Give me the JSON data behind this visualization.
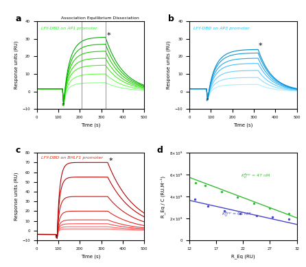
{
  "panel_a": {
    "label": "a",
    "title": "Association Equilibrium Dissociation",
    "subtitle": "LFY-DBD on AP1 promoter",
    "subtitle_color": "#22ee22",
    "xlim": [
      0,
      500
    ],
    "ylim": [
      -10,
      40
    ],
    "xlabel": "Time (s)",
    "ylabel": "Response units (RU)",
    "assoc_start": 120,
    "dissoc_start": 320,
    "vline1": 210,
    "vline2": 320,
    "num_curves": 7,
    "max_responses": [
      5,
      10,
      15,
      19,
      23,
      27,
      31
    ],
    "k_on": 0.03,
    "k_off": 0.012,
    "baseline": 1.5,
    "dip": -8.0,
    "star_x": 325,
    "star_y": 30,
    "bracket_x": 120,
    "bracket_y": -9
  },
  "panel_b": {
    "label": "b",
    "subtitle": "LFY-DBD on AP3 promoter",
    "subtitle_color": "#00ccff",
    "xlim": [
      0,
      500
    ],
    "ylim": [
      -10,
      40
    ],
    "xlabel": "Time (s)",
    "ylabel": "Response units (RU)",
    "assoc_start": 80,
    "dissoc_start": 320,
    "num_curves": 7,
    "max_responses": [
      4,
      8,
      12,
      16,
      19,
      22,
      24
    ],
    "k_on": 0.025,
    "k_off": 0.015,
    "baseline": 1.5,
    "dip": -5.0,
    "star_x": 320,
    "star_y": 24,
    "bracket_x": 80,
    "bracket_y": -6
  },
  "panel_c": {
    "label": "c",
    "subtitle": "LFY-DBD on BHLF1 promoter",
    "subtitle_color": "#ee2200",
    "xlim": [
      0,
      500
    ],
    "ylim": [
      -10,
      80
    ],
    "xlabel": "Time (s)",
    "ylabel": "Response units (RU)",
    "assoc_start": 90,
    "dissoc_start": 330,
    "num_curves": 9,
    "max_responses": [
      1,
      2,
      4,
      7,
      11,
      20,
      35,
      55,
      70
    ],
    "k_on": 0.08,
    "k_off": 0.008,
    "baseline": -4.0,
    "dip": -8.0,
    "star_x": 335,
    "star_y": 68,
    "bracket_x": 90,
    "bracket_y": -9
  },
  "panel_d": {
    "label": "d",
    "xlabel": "R_Eq (RU)",
    "ylabel": "R_Eq / C (RU.M⁻¹)",
    "xlim": [
      12,
      32
    ],
    "ylim": [
      0,
      800000000.0
    ],
    "xticks": [
      12,
      17,
      22,
      27,
      32
    ],
    "yticks": [
      0,
      200000000.0,
      400000000.0,
      600000000.0,
      800000000.0
    ],
    "green_points_x": [
      13.2,
      15.0,
      18.0,
      21.0,
      24.0,
      27.0,
      30.5
    ],
    "green_points_y": [
      525000000.0,
      500000000.0,
      445000000.0,
      395000000.0,
      335000000.0,
      295000000.0,
      245000000.0
    ],
    "green_line_x": [
      12,
      32
    ],
    "green_line_y": [
      575000000.0,
      205000000.0
    ],
    "green_color": "#33bb33",
    "blue_points_x": [
      13.0,
      15.5,
      18.5,
      21.5,
      24.5,
      27.5,
      30.5
    ],
    "blue_points_y": [
      375000000.0,
      310000000.0,
      270000000.0,
      245000000.0,
      225000000.0,
      215000000.0,
      195000000.0
    ],
    "blue_line_x": [
      12,
      32
    ],
    "blue_line_y": [
      365000000.0,
      145000000.0
    ],
    "blue_color": "#4444cc"
  }
}
